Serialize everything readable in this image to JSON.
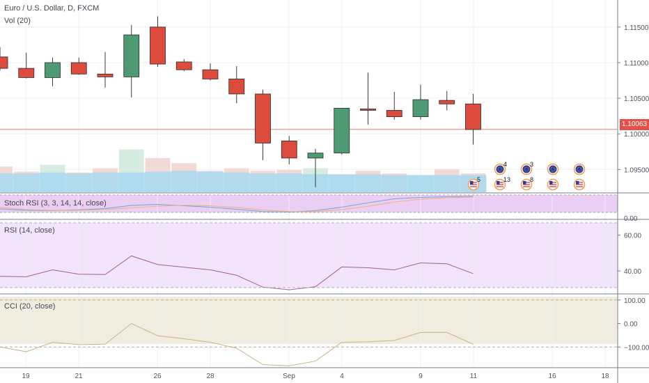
{
  "header": {
    "symbol_line": "Euro / U.S. Dollar, D, FXCM",
    "volume_label": "Vol (20)"
  },
  "colors": {
    "up": "#4e9a72",
    "down": "#dc4b3c",
    "grid": "#eef0f3",
    "volume_up": "#d6ece0",
    "volume_down": "#f2d9d6",
    "volume_ma": "#a8d8f0",
    "stoch_bg": "#eccdf3",
    "rsi_bg": "#f2e4fb",
    "cci_bg": "#f1ece0",
    "price_line": "#e87b74"
  },
  "chart_data": [
    {
      "type": "candlestick",
      "title": "Euro / U.S. Dollar, D, FXCM",
      "x_ticks": [
        "19",
        "21",
        "26",
        "28",
        "Sep",
        "4",
        "9",
        "11",
        "16",
        "18"
      ],
      "y_ticks": [
        "1.11500",
        "1.11000",
        "1.10500",
        "1.10000",
        "1.09500"
      ],
      "ylim": [
        1.0918,
        1.1188
      ],
      "last_price_label": "1.10063",
      "last_price": 1.10063,
      "candles": [
        {
          "open": 1.1108,
          "high": 1.1122,
          "low": 1.1089,
          "close": 1.1092
        },
        {
          "open": 1.1092,
          "high": 1.1114,
          "low": 1.1078,
          "close": 1.1079
        },
        {
          "open": 1.1079,
          "high": 1.1107,
          "low": 1.1067,
          "close": 1.11
        },
        {
          "open": 1.11,
          "high": 1.1107,
          "low": 1.1083,
          "close": 1.1084
        },
        {
          "open": 1.1084,
          "high": 1.1115,
          "low": 1.1065,
          "close": 1.108
        },
        {
          "open": 1.108,
          "high": 1.1153,
          "low": 1.1051,
          "close": 1.1139
        },
        {
          "open": 1.115,
          "high": 1.1165,
          "low": 1.1094,
          "close": 1.1098
        },
        {
          "open": 1.1101,
          "high": 1.1105,
          "low": 1.1088,
          "close": 1.109
        },
        {
          "open": 1.109,
          "high": 1.1099,
          "low": 1.1075,
          "close": 1.1077
        },
        {
          "open": 1.1077,
          "high": 1.1095,
          "low": 1.1043,
          "close": 1.1056
        },
        {
          "open": 1.1056,
          "high": 1.1062,
          "low": 1.0963,
          "close": 1.0987
        },
        {
          "open": 1.099,
          "high": 1.0997,
          "low": 1.0957,
          "close": 1.0966
        },
        {
          "open": 1.0966,
          "high": 1.0979,
          "low": 1.0925,
          "close": 1.0973
        },
        {
          "open": 1.0973,
          "high": 1.1036,
          "low": 1.0971,
          "close": 1.1036
        },
        {
          "open": 1.1035,
          "high": 1.1086,
          "low": 1.1013,
          "close": 1.1033
        },
        {
          "open": 1.1033,
          "high": 1.1059,
          "low": 1.102,
          "close": 1.1024
        },
        {
          "open": 1.1024,
          "high": 1.1069,
          "low": 1.102,
          "close": 1.1048
        },
        {
          "open": 1.1047,
          "high": 1.106,
          "low": 1.1033,
          "close": 1.1042
        },
        {
          "open": 1.1042,
          "high": 1.1056,
          "low": 1.0985,
          "close": 1.1006
        }
      ]
    },
    {
      "type": "bar",
      "title": "Vol (20)",
      "values": [
        60,
        54,
        62,
        53,
        58,
        80,
        70,
        64,
        55,
        58,
        55,
        56,
        58,
        50,
        55,
        52,
        50,
        57,
        52
      ],
      "ma": [
        52,
        52,
        53,
        52,
        53,
        53,
        54,
        55,
        54,
        53,
        52,
        52,
        51,
        51,
        51,
        50,
        50,
        50,
        50
      ],
      "ylim": [
        30,
        100
      ]
    },
    {
      "type": "line",
      "title": "Stoch RSI (3, 3, 14, 14, close)",
      "ylim": [
        0,
        100
      ],
      "y_ticks": [
        "0.00"
      ],
      "series": [
        {
          "values": [
            20,
            12,
            10,
            15,
            22,
            40,
            46,
            38,
            30,
            18,
            5,
            2,
            10,
            30,
            55,
            78,
            86,
            90,
            92
          ]
        },
        {
          "values": [
            28,
            16,
            11,
            12,
            16,
            26,
            36,
            41,
            38,
            28,
            14,
            5,
            4,
            16,
            35,
            60,
            76,
            84,
            88
          ]
        }
      ]
    },
    {
      "type": "line",
      "title": "RSI (14, close)",
      "ylim": [
        28,
        68
      ],
      "y_ticks": [
        "60.00",
        "40.00"
      ],
      "series": [
        {
          "values": [
            37,
            36.8,
            40.6,
            38.2,
            38.0,
            48.4,
            43.6,
            42.1,
            40.6,
            37.6,
            31.0,
            29.5,
            31.2,
            42.2,
            41.8,
            40.6,
            44.5,
            44.0,
            38.5
          ]
        }
      ]
    },
    {
      "type": "line",
      "title": "CCI (20, close)",
      "ylim": [
        -185,
        120
      ],
      "y_ticks": [
        "100.00",
        "0.00",
        "−100.00"
      ],
      "series": [
        {
          "values": [
            -100,
            -120,
            -80,
            -90,
            -88,
            0,
            -52,
            -65,
            -80,
            -105,
            -175,
            -180,
            -160,
            -80,
            -78,
            -72,
            -38,
            -38,
            -88
          ]
        }
      ]
    }
  ],
  "event_markers": [
    {
      "count": "4",
      "type": "eu-flag"
    },
    {
      "count": "3",
      "type": "eu-flag"
    },
    {
      "count": "",
      "type": "eu-flag"
    },
    {
      "count": "",
      "type": "eu-flag"
    },
    {
      "count": "5",
      "type": "us-flag"
    },
    {
      "count": "13",
      "type": "us-flag"
    },
    {
      "count": "8",
      "type": "us-flag"
    },
    {
      "count": "",
      "type": "us-flag"
    },
    {
      "count": "",
      "type": "us-flag"
    }
  ]
}
